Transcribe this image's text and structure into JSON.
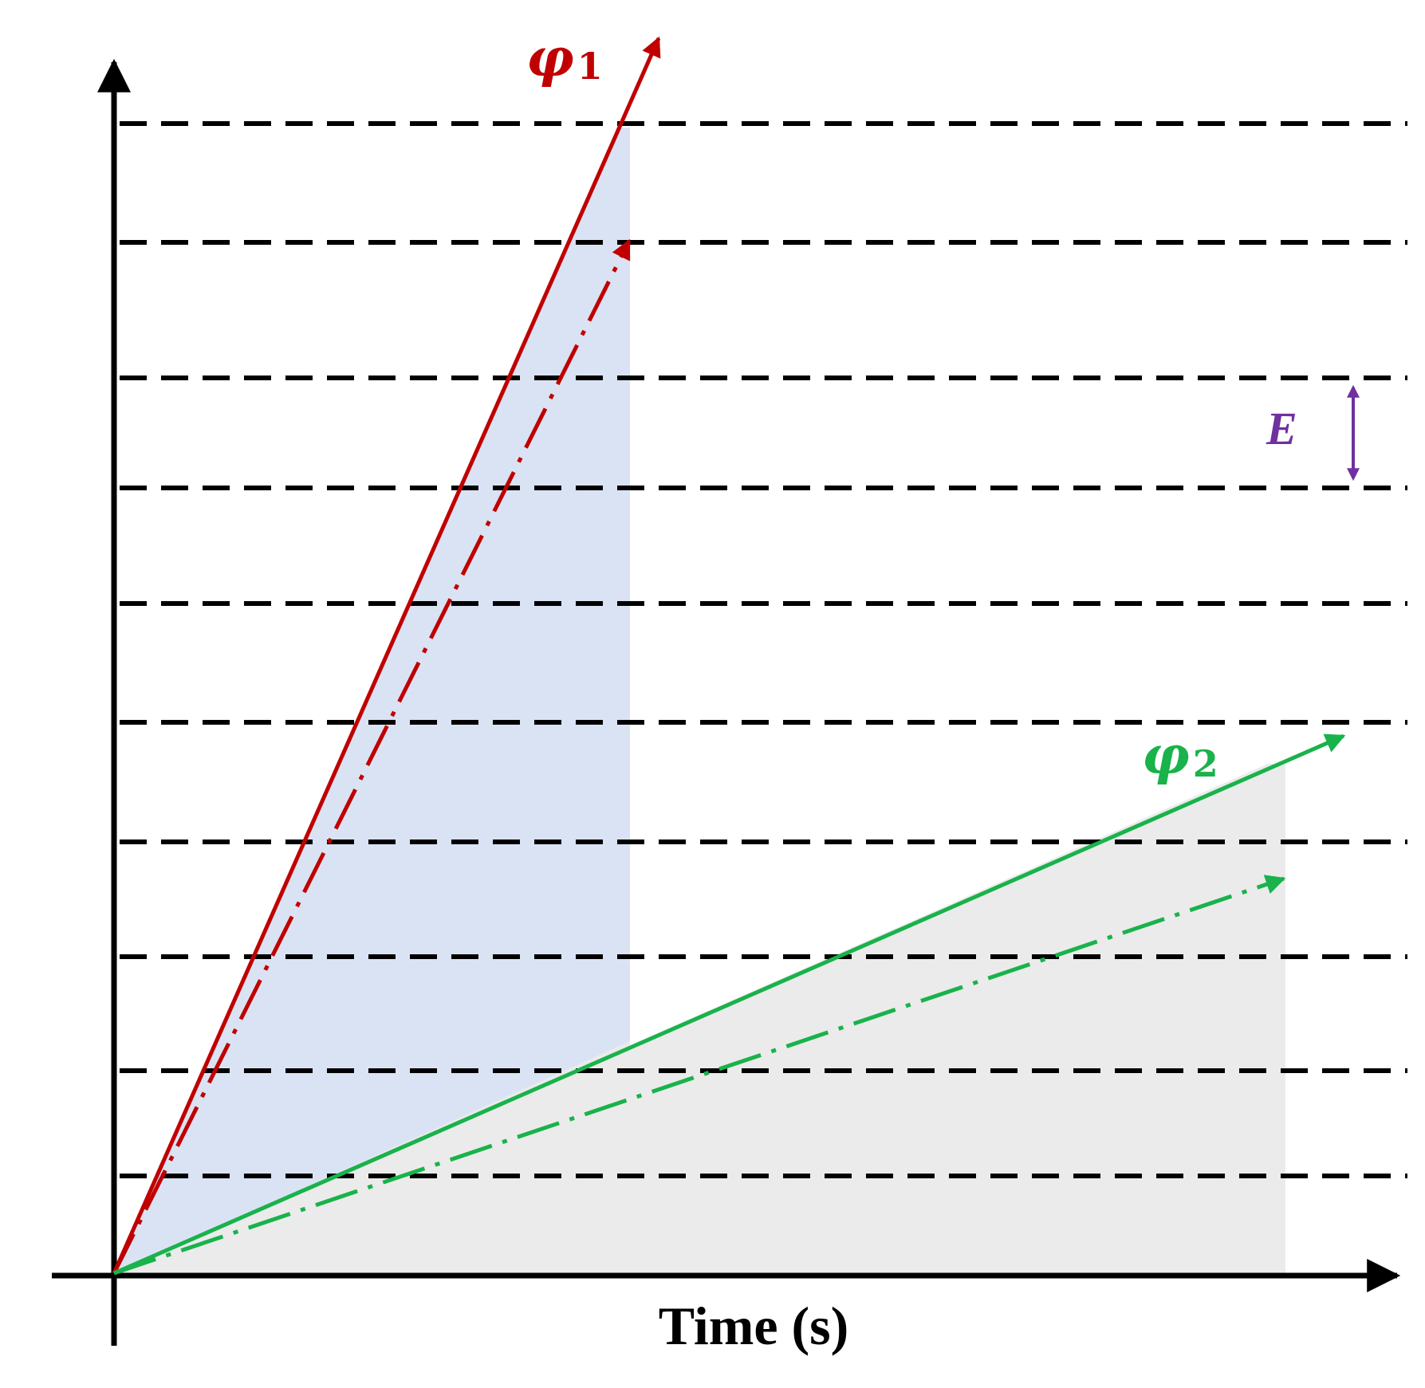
{
  "colors": {
    "phi1": "#c00000",
    "phi2": "#19b24b",
    "energy": "#7030a0",
    "axis": "#000000",
    "level_line": "#000000",
    "phi1_area": "#dae3f3",
    "phi2_area": "#ebebeb"
  },
  "axes": {
    "x_label": "Time (s)"
  },
  "energy_levels": {
    "count": 10,
    "spacing_label": "E"
  },
  "series": [
    {
      "key": "phi1",
      "symbol": "φ",
      "subscript": "1",
      "color": "#c00000",
      "shaded_area_color": "#dae3f3"
    },
    {
      "key": "phi2",
      "symbol": "φ",
      "subscript": "2",
      "color": "#19b24b",
      "shaded_area_color": "#ebebeb"
    }
  ],
  "icons": {
    "energy_spacing_arrow": "double-headed-vertical-arrow-icon",
    "axis_arrow": "arrowhead-icon"
  }
}
